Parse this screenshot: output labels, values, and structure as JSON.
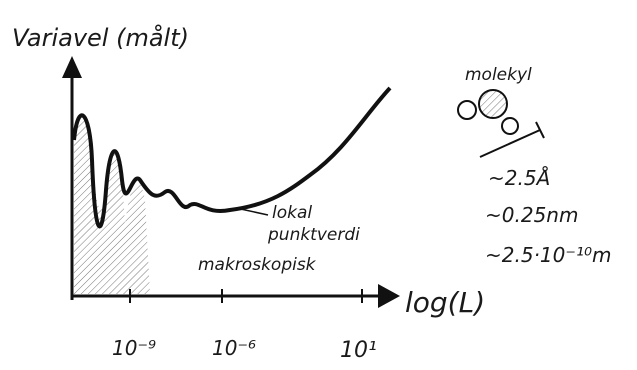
{
  "title": "Variavel (målt)",
  "x_axis_label": "log(L)",
  "x_ticks": [
    "10⁻⁹",
    "10⁻⁶",
    "10¹"
  ],
  "annotations": {
    "local": [
      "lokal",
      "punktverdi"
    ],
    "macro": "makroskopisk"
  },
  "molecule": {
    "label": "molekyl",
    "sizes": [
      "~2.5Å",
      "~0.25nm",
      "~2.5·10⁻¹⁰m"
    ]
  }
}
